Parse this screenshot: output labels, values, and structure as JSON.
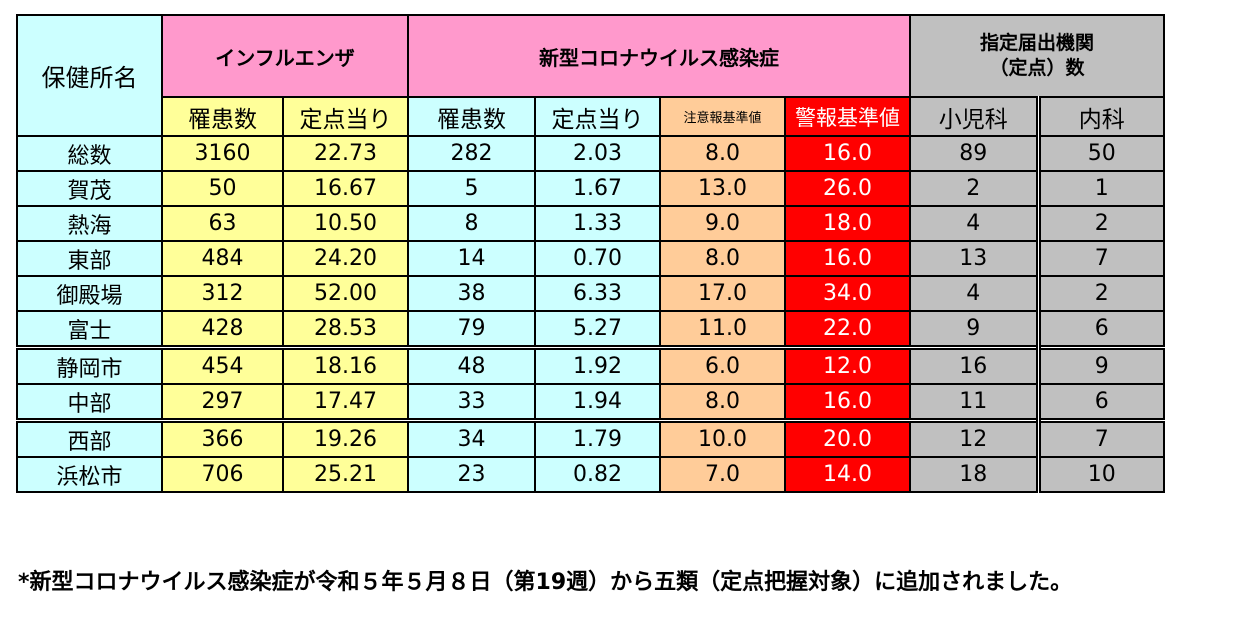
{
  "headers": {
    "region": "保健所名",
    "influenza": "インフルエンザ",
    "covid": "新型コロナウイルス感染症",
    "institutions_line1": "指定届出機関",
    "institutions_line2": "（定点）数",
    "patients": "罹患数",
    "per_sentinel": "定点当り",
    "caution_threshold": "注意報基準値",
    "warning_threshold": "警報基準値",
    "pediatrics": "小児科",
    "internal_medicine": "内科"
  },
  "rows": [
    {
      "region": "総数",
      "flu_patients": "3160",
      "flu_per": "22.73",
      "covid_patients": "282",
      "covid_per": "2.03",
      "caution": "8.0",
      "warning": "16.0",
      "pediatrics": "89",
      "internal": "50"
    },
    {
      "region": "賀茂",
      "flu_patients": "50",
      "flu_per": "16.67",
      "covid_patients": "5",
      "covid_per": "1.67",
      "caution": "13.0",
      "warning": "26.0",
      "pediatrics": "2",
      "internal": "1"
    },
    {
      "region": "熱海",
      "flu_patients": "63",
      "flu_per": "10.50",
      "covid_patients": "8",
      "covid_per": "1.33",
      "caution": "9.0",
      "warning": "18.0",
      "pediatrics": "4",
      "internal": "2"
    },
    {
      "region": "東部",
      "flu_patients": "484",
      "flu_per": "24.20",
      "covid_patients": "14",
      "covid_per": "0.70",
      "caution": "8.0",
      "warning": "16.0",
      "pediatrics": "13",
      "internal": "7"
    },
    {
      "region": "御殿場",
      "flu_patients": "312",
      "flu_per": "52.00",
      "covid_patients": "38",
      "covid_per": "6.33",
      "caution": "17.0",
      "warning": "34.0",
      "pediatrics": "4",
      "internal": "2"
    },
    {
      "region": "富士",
      "flu_patients": "428",
      "flu_per": "28.53",
      "covid_patients": "79",
      "covid_per": "5.27",
      "caution": "11.0",
      "warning": "22.0",
      "pediatrics": "9",
      "internal": "6"
    },
    {
      "region": "静岡市",
      "flu_patients": "454",
      "flu_per": "18.16",
      "covid_patients": "48",
      "covid_per": "1.92",
      "caution": "6.0",
      "warning": "12.0",
      "pediatrics": "16",
      "internal": "9"
    },
    {
      "region": "中部",
      "flu_patients": "297",
      "flu_per": "17.47",
      "covid_patients": "33",
      "covid_per": "1.94",
      "caution": "8.0",
      "warning": "16.0",
      "pediatrics": "11",
      "internal": "6"
    },
    {
      "region": "西部",
      "flu_patients": "366",
      "flu_per": "19.26",
      "covid_patients": "34",
      "covid_per": "1.79",
      "caution": "10.0",
      "warning": "20.0",
      "pediatrics": "12",
      "internal": "7"
    },
    {
      "region": "浜松市",
      "flu_patients": "706",
      "flu_per": "25.21",
      "covid_patients": "23",
      "covid_per": "0.82",
      "caution": "7.0",
      "warning": "14.0",
      "pediatrics": "18",
      "internal": "10"
    }
  ],
  "footnote": "*新型コロナウイルス感染症が令和５年５月８日（第19週）から五類（定点把握対象）に追加されました。",
  "colors": {
    "region": "#ccffff",
    "header_group": "#ff99cc",
    "influenza_values": "#ffff99",
    "covid_values": "#ccffff",
    "caution": "#ffcc99",
    "warning": "#ff0000",
    "institutions": "#c0c0c0"
  }
}
